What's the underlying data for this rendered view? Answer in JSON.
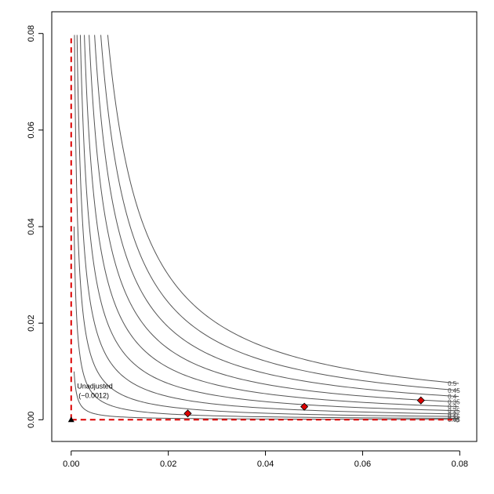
{
  "chart_data": {
    "type": "contour",
    "title": "",
    "xlabel": "",
    "ylabel": "",
    "xlim": [
      -0.004,
      0.0835
    ],
    "ylim": [
      -0.0045,
      0.0845
    ],
    "x_ticks": [
      0.0,
      0.02,
      0.04,
      0.06,
      0.08
    ],
    "x_tick_labels": [
      "0.00",
      "0.02",
      "0.04",
      "0.06",
      "0.08"
    ],
    "y_ticks": [
      0.0,
      0.02,
      0.04,
      0.06,
      0.08
    ],
    "y_tick_labels": [
      "0.00",
      "0.02",
      "0.04",
      "0.06",
      "0.08"
    ],
    "grid": false,
    "legend": "none",
    "contour_levels": [
      0.05,
      0.1,
      0.15,
      0.2,
      0.25,
      0.3,
      0.35,
      0.4,
      0.45,
      0.5
    ],
    "contour_labels": [
      "0.05",
      "0.1",
      "0.15",
      "0.2",
      "0.25",
      "0.3",
      "0.35",
      "0.4",
      "0.45",
      "0.5"
    ],
    "zero_contour_label": "0",
    "reference_lines": {
      "color": "#dd0000",
      "style": "dashed",
      "vertical_x": 0.0,
      "vertical_y_range": [
        0.0,
        0.079
      ],
      "horizontal_y": 0.0,
      "horizontal_x_range": [
        0.0,
        0.0785
      ]
    },
    "points": [
      {
        "x": 0.024,
        "y": 0.0013,
        "shape": "diamond",
        "color": "#dd0000"
      },
      {
        "x": 0.048,
        "y": 0.0027,
        "shape": "diamond",
        "color": "#dd0000"
      },
      {
        "x": 0.072,
        "y": 0.004,
        "shape": "diamond",
        "color": "#dd0000"
      }
    ],
    "unadjusted_point": {
      "x": 0.0,
      "y": 0.0,
      "shape": "triangle",
      "color": "#000000"
    },
    "annotation": {
      "line1": "Unadjusted",
      "line2": "(−0.0012)",
      "x": 0.0012,
      "y": 0.0065
    }
  }
}
